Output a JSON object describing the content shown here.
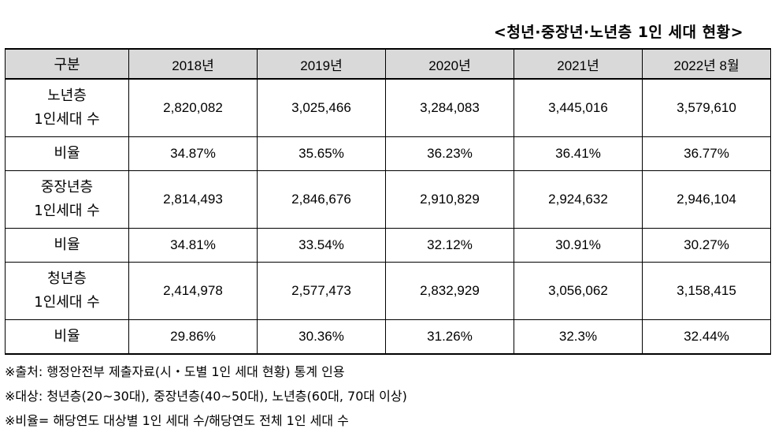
{
  "title": "<청년·중장년·노년층 1인 세대 현황>",
  "table": {
    "headers": [
      "구분",
      "2018년",
      "2019년",
      "2020년",
      "2021년",
      "2022년 8월"
    ],
    "rows": [
      {
        "label_line1": "노년층",
        "label_line2": "1인세대 수",
        "values": [
          "2,820,082",
          "3,025,466",
          "3,284,083",
          "3,445,016",
          "3,579,610"
        ]
      },
      {
        "label_line1": "비율",
        "values": [
          "34.87%",
          "35.65%",
          "36.23%",
          "36.41%",
          "36.77%"
        ]
      },
      {
        "label_line1": "중장년층",
        "label_line2": "1인세대 수",
        "values": [
          "2,814,493",
          "2,846,676",
          "2,910,829",
          "2,924,632",
          "2,946,104"
        ]
      },
      {
        "label_line1": "비율",
        "values": [
          "34.81%",
          "33.54%",
          "32.12%",
          "30.91%",
          "30.27%"
        ]
      },
      {
        "label_line1": "청년층",
        "label_line2": "1인세대 수",
        "values": [
          "2,414,978",
          "2,577,473",
          "2,832,929",
          "3,056,062",
          "3,158,415"
        ]
      },
      {
        "label_line1": "비율",
        "values": [
          "29.86%",
          "30.36%",
          "31.26%",
          "32.3%",
          "32.44%"
        ]
      }
    ]
  },
  "notes": [
    "※출처: 행정안전부 제출자료(시・도별 1인 세대 현황) 통계 인용",
    "※대상: 청년층(20~30대), 중장년층(40~50대), 노년층(60대, 70대 이상)",
    "※비율= 해당연도 대상별 1인 세대 수/해당연도 전체 1인 세대 수"
  ]
}
